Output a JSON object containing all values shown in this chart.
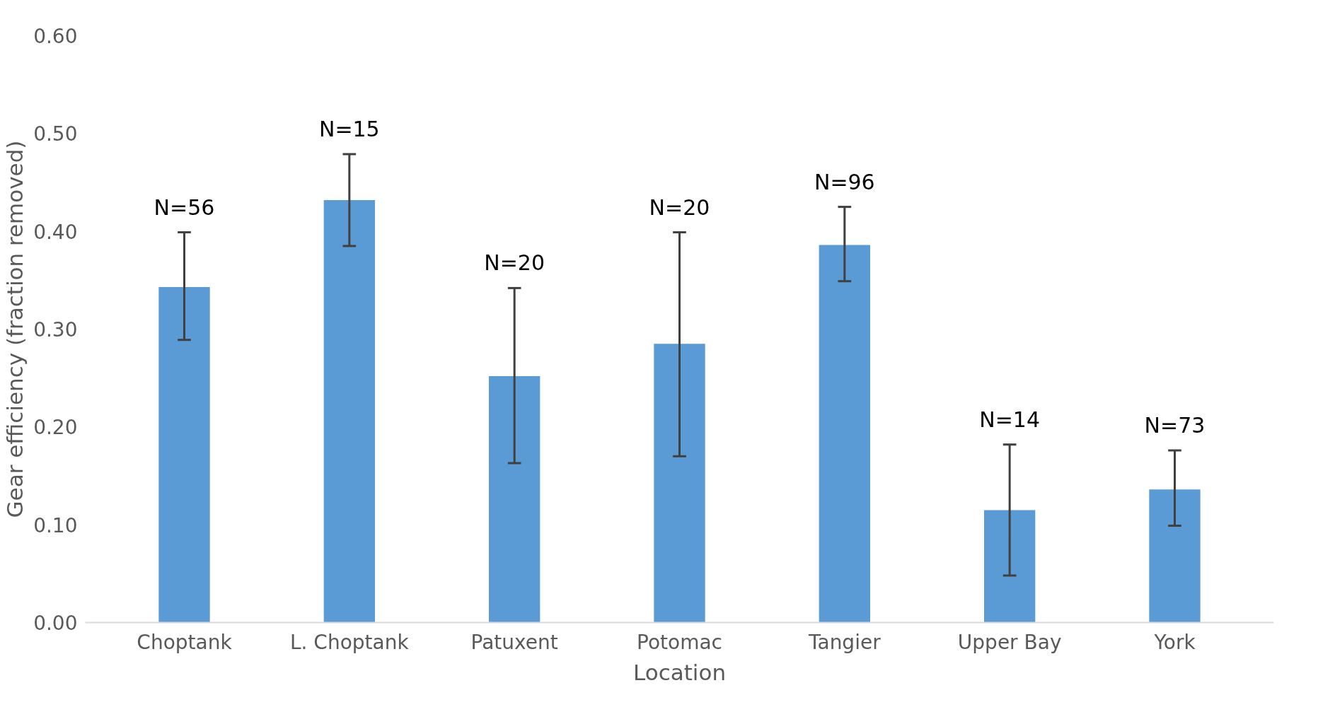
{
  "chart_data": {
    "type": "bar",
    "xlabel": "Location",
    "ylabel": "Gear efficiency (fraction removed)",
    "categories": [
      "Choptank",
      "L. Choptank",
      "Patuxent",
      "Potomac",
      "Tangier",
      "Upper Bay",
      "York"
    ],
    "values": [
      0.343,
      0.432,
      0.252,
      0.285,
      0.386,
      0.115,
      0.136
    ],
    "errors": [
      [
        0.289,
        0.399
      ],
      [
        0.385,
        0.479
      ],
      [
        0.163,
        0.342
      ],
      [
        0.17,
        0.399
      ],
      [
        0.349,
        0.425
      ],
      [
        0.048,
        0.182
      ],
      [
        0.099,
        0.176
      ]
    ],
    "color": "#5b9bd5",
    "ylim": [
      0,
      0.6
    ],
    "yticks": [
      {
        "value": 0,
        "label": "0.00"
      },
      {
        "value": 0.1,
        "label": "0.10"
      },
      {
        "value": 0.2,
        "label": "0.20"
      },
      {
        "value": 0.3,
        "label": "0.30"
      },
      {
        "value": 0.4,
        "label": "0.40"
      },
      {
        "value": 0.5,
        "label": "0.50"
      },
      {
        "value": 0.6,
        "label": "0.60"
      }
    ],
    "grid": false,
    "annotations": [
      "N=56",
      "N=15",
      "N=20",
      "N=20",
      "N=96",
      "N=14",
      "N=73"
    ]
  }
}
